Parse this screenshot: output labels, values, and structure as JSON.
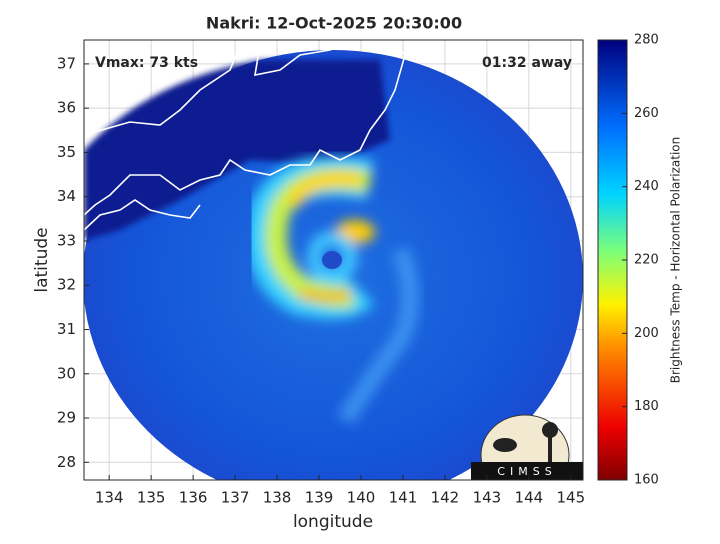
{
  "chart_data": {
    "type": "map",
    "title": "Nakri: 12-Oct-2025 20:30:00",
    "annotations": [
      "Vmax: 73 kts",
      "01:32 away"
    ],
    "x_label": "longitude",
    "y_label": "latitude",
    "xlim": [
      133.4,
      145.29
    ],
    "xticks": [
      134,
      135,
      136,
      137,
      138,
      139,
      140,
      141,
      142,
      143,
      144,
      145
    ],
    "ylim": [
      27.6,
      37.54
    ],
    "yticks": [
      28,
      29,
      30,
      31,
      32,
      33,
      34,
      35,
      36,
      37
    ],
    "grid": true,
    "colorbar": {
      "label": "Brightness Temp - Horizontal Polarization",
      "lim": [
        160,
        280
      ],
      "ticks": [
        160,
        180,
        200,
        220,
        240,
        260,
        280
      ]
    },
    "logo": "CIMSS"
  }
}
